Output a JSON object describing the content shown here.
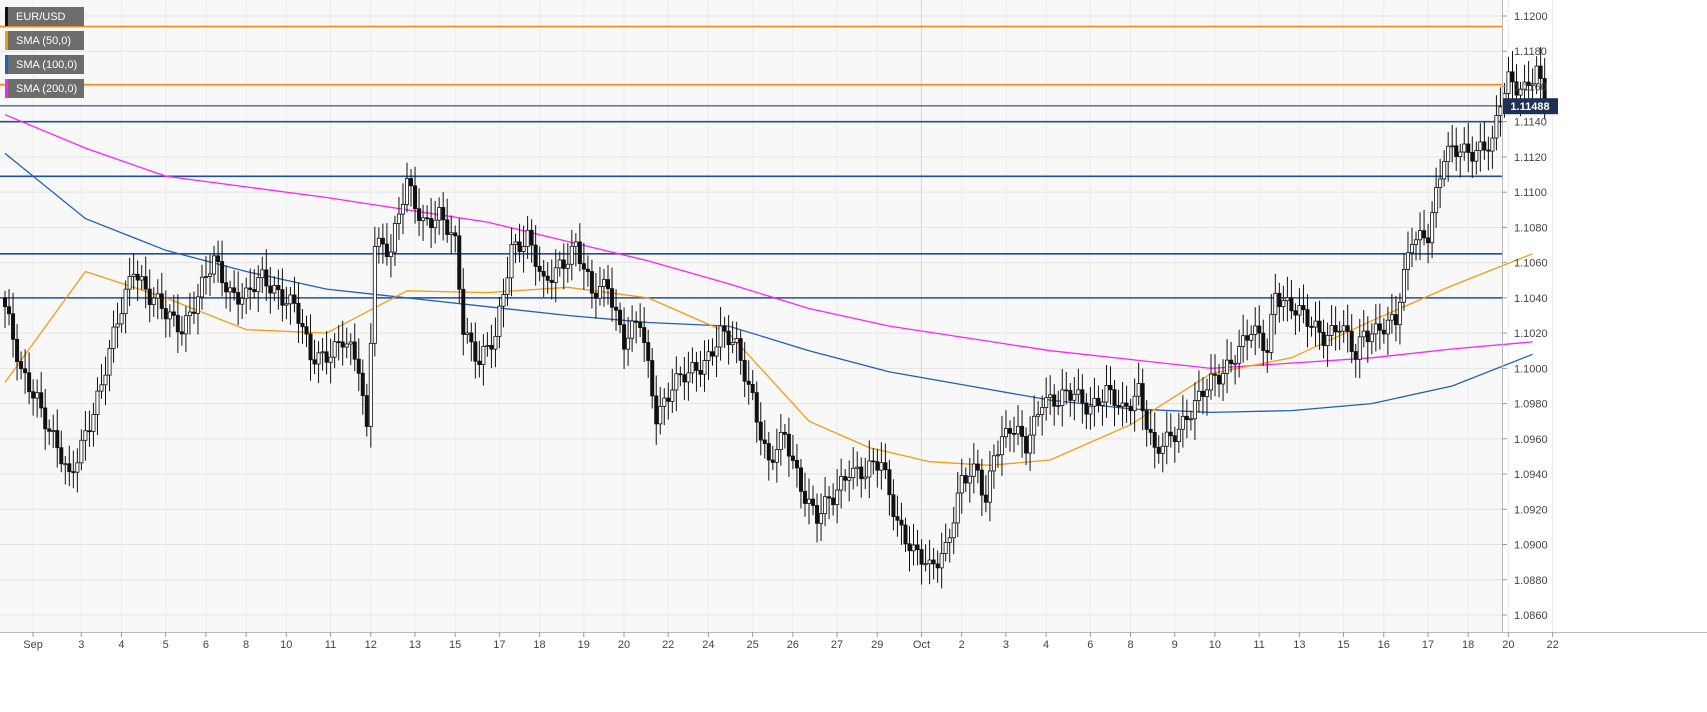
{
  "legend": {
    "items": [
      {
        "label": "EUR/USD",
        "color": "#111111"
      },
      {
        "label": "SMA (50,0)",
        "color": "#f39c12"
      },
      {
        "label": "SMA (100,0)",
        "color": "#1f5fbf"
      },
      {
        "label": "SMA (200,0)",
        "color": "#ff22ff"
      }
    ]
  },
  "price_label": {
    "value": "1.11488",
    "bg": "#1f2f55"
  },
  "chart_data": {
    "type": "candlestick",
    "ylim": [
      1.085,
      1.121
    ],
    "y_ticks": [
      1.086,
      1.088,
      1.09,
      1.092,
      1.094,
      1.096,
      1.098,
      1.1,
      1.102,
      1.104,
      1.106,
      1.108,
      1.11,
      1.112,
      1.114,
      1.116,
      1.118,
      1.12
    ],
    "y_tick_labels": [
      "1.0860",
      "1.0880",
      "1.0900",
      "1.0920",
      "1.0940",
      "1.0960",
      "1.0980",
      "1.1000",
      "1.1020",
      "1.1040",
      "1.1060",
      "1.1080",
      "1.1100",
      "1.1120",
      "1.1140",
      "1.1160",
      "1.1180",
      "1.1200"
    ],
    "x_labels": [
      "Sep",
      "3",
      "4",
      "5",
      "6",
      "8",
      "10",
      "11",
      "12",
      "13",
      "15",
      "17",
      "18",
      "19",
      "20",
      "22",
      "24",
      "25",
      "26",
      "27",
      "29",
      "Oct",
      "2",
      "3",
      "4",
      "6",
      "8",
      "9",
      "10",
      "11",
      "13",
      "15",
      "16",
      "17",
      "18",
      "20",
      "22"
    ],
    "x_positions_bar": [
      2,
      14,
      24,
      35,
      45,
      55,
      65,
      76,
      86,
      97,
      107,
      118,
      128,
      139,
      149,
      160,
      170,
      181,
      191,
      202,
      212,
      223,
      233,
      244,
      254,
      265,
      275,
      286,
      296,
      307,
      317,
      328,
      338,
      349,
      359,
      369,
      380
    ],
    "horizontal_levels": [
      {
        "value": 1.1194,
        "color": "#f08a1a"
      },
      {
        "value": 1.1161,
        "color": "#f08a1a"
      },
      {
        "value": 1.1149,
        "color": "#1f2f55"
      },
      {
        "value": 1.114,
        "color": "#1f4ea0"
      },
      {
        "value": 1.1109,
        "color": "#1f4ea0"
      },
      {
        "value": 1.1065,
        "color": "#1f4ea0"
      },
      {
        "value": 1.104,
        "color": "#1f4ea0"
      }
    ],
    "sma50": [
      [
        0,
        1.0992
      ],
      [
        20,
        1.1055
      ],
      [
        40,
        1.104
      ],
      [
        60,
        1.1022
      ],
      [
        80,
        1.102
      ],
      [
        100,
        1.1044
      ],
      [
        120,
        1.1043
      ],
      [
        140,
        1.1046
      ],
      [
        160,
        1.104
      ],
      [
        180,
        1.102
      ],
      [
        200,
        1.097
      ],
      [
        215,
        1.0955
      ],
      [
        230,
        1.0947
      ],
      [
        245,
        1.0945
      ],
      [
        260,
        1.0948
      ],
      [
        280,
        1.0968
      ],
      [
        300,
        1.0997
      ],
      [
        320,
        1.1006
      ],
      [
        340,
        1.1027
      ],
      [
        360,
        1.1047
      ],
      [
        380,
        1.1065
      ]
    ],
    "sma100": [
      [
        0,
        1.1122
      ],
      [
        20,
        1.1085
      ],
      [
        40,
        1.1067
      ],
      [
        60,
        1.1055
      ],
      [
        80,
        1.1045
      ],
      [
        100,
        1.104
      ],
      [
        120,
        1.1035
      ],
      [
        140,
        1.103
      ],
      [
        160,
        1.1026
      ],
      [
        180,
        1.1024
      ],
      [
        200,
        1.101
      ],
      [
        220,
        1.0998
      ],
      [
        240,
        1.099
      ],
      [
        260,
        1.0982
      ],
      [
        280,
        1.0977
      ],
      [
        300,
        1.0975
      ],
      [
        320,
        1.0976
      ],
      [
        340,
        1.098
      ],
      [
        360,
        1.099
      ],
      [
        380,
        1.1008
      ]
    ],
    "sma200": [
      [
        0,
        1.1144
      ],
      [
        20,
        1.1125
      ],
      [
        40,
        1.1109
      ],
      [
        60,
        1.1103
      ],
      [
        80,
        1.1097
      ],
      [
        100,
        1.109
      ],
      [
        120,
        1.1083
      ],
      [
        140,
        1.1072
      ],
      [
        160,
        1.1061
      ],
      [
        180,
        1.1048
      ],
      [
        200,
        1.1034
      ],
      [
        220,
        1.1024
      ],
      [
        240,
        1.1017
      ],
      [
        260,
        1.101
      ],
      [
        280,
        1.1005
      ],
      [
        300,
        1.1
      ],
      [
        320,
        1.1003
      ],
      [
        340,
        1.1006
      ],
      [
        360,
        1.1011
      ],
      [
        380,
        1.1015
      ]
    ],
    "candle_anchors": [
      [
        0,
        1.1035
      ],
      [
        4,
        1.0995
      ],
      [
        8,
        1.0985
      ],
      [
        12,
        1.096
      ],
      [
        16,
        1.0935
      ],
      [
        20,
        1.0965
      ],
      [
        24,
        1.099
      ],
      [
        28,
        1.1025
      ],
      [
        32,
        1.106
      ],
      [
        36,
        1.104
      ],
      [
        40,
        1.103
      ],
      [
        44,
        1.1025
      ],
      [
        48,
        1.104
      ],
      [
        52,
        1.106
      ],
      [
        56,
        1.1045
      ],
      [
        60,
        1.104
      ],
      [
        64,
        1.105
      ],
      [
        68,
        1.1045
      ],
      [
        72,
        1.1035
      ],
      [
        76,
        1.1005
      ],
      [
        80,
        1.101
      ],
      [
        84,
        1.1015
      ],
      [
        88,
        1.1
      ],
      [
        90,
        1.0965
      ],
      [
        92,
        1.1075
      ],
      [
        96,
        1.1065
      ],
      [
        100,
        1.1105
      ],
      [
        104,
        1.1085
      ],
      [
        108,
        1.1085
      ],
      [
        112,
        1.107
      ],
      [
        114,
        1.1025
      ],
      [
        118,
        1.1005
      ],
      [
        122,
        1.1015
      ],
      [
        126,
        1.107
      ],
      [
        130,
        1.1075
      ],
      [
        134,
        1.1045
      ],
      [
        138,
        1.106
      ],
      [
        142,
        1.107
      ],
      [
        146,
        1.104
      ],
      [
        150,
        1.105
      ],
      [
        154,
        1.1015
      ],
      [
        158,
        1.1025
      ],
      [
        162,
        1.0975
      ],
      [
        166,
        1.099
      ],
      [
        170,
        1.0995
      ],
      [
        174,
        1.1005
      ],
      [
        178,
        1.102
      ],
      [
        182,
        1.101
      ],
      [
        186,
        1.0985
      ],
      [
        190,
        1.0945
      ],
      [
        194,
        1.096
      ],
      [
        198,
        1.0935
      ],
      [
        202,
        1.0915
      ],
      [
        206,
        1.0925
      ],
      [
        210,
        1.0945
      ],
      [
        214,
        1.094
      ],
      [
        218,
        1.0945
      ],
      [
        222,
        1.0915
      ],
      [
        226,
        1.0895
      ],
      [
        230,
        1.0885
      ],
      [
        234,
        1.09
      ],
      [
        238,
        1.0935
      ],
      [
        242,
        1.094
      ],
      [
        244,
        1.0925
      ],
      [
        246,
        1.0955
      ],
      [
        250,
        1.0965
      ],
      [
        254,
        1.0955
      ],
      [
        258,
        1.0985
      ],
      [
        262,
        1.098
      ],
      [
        266,
        1.0985
      ],
      [
        270,
        1.098
      ],
      [
        274,
        1.0985
      ],
      [
        278,
        1.0975
      ],
      [
        282,
        1.099
      ],
      [
        286,
        1.095
      ],
      [
        290,
        1.096
      ],
      [
        294,
        1.0975
      ],
      [
        298,
        1.0985
      ],
      [
        302,
        1.0995
      ],
      [
        306,
        1.101
      ],
      [
        310,
        1.102
      ],
      [
        314,
        1.101
      ],
      [
        316,
        1.1045
      ],
      [
        320,
        1.1035
      ],
      [
        324,
        1.1025
      ],
      [
        328,
        1.102
      ],
      [
        332,
        1.1025
      ],
      [
        336,
        1.1005
      ],
      [
        338,
        1.102
      ],
      [
        342,
        1.1025
      ],
      [
        346,
        1.1025
      ],
      [
        350,
        1.1075
      ],
      [
        354,
        1.1078
      ],
      [
        358,
        1.1118
      ],
      [
        362,
        1.1125
      ],
      [
        366,
        1.1125
      ],
      [
        370,
        1.1125
      ],
      [
        372,
        1.115
      ],
      [
        374,
        1.1165
      ],
      [
        378,
        1.116
      ],
      [
        381,
        1.1167
      ],
      [
        383,
        1.1149
      ]
    ],
    "candle_step": 1.45
  }
}
